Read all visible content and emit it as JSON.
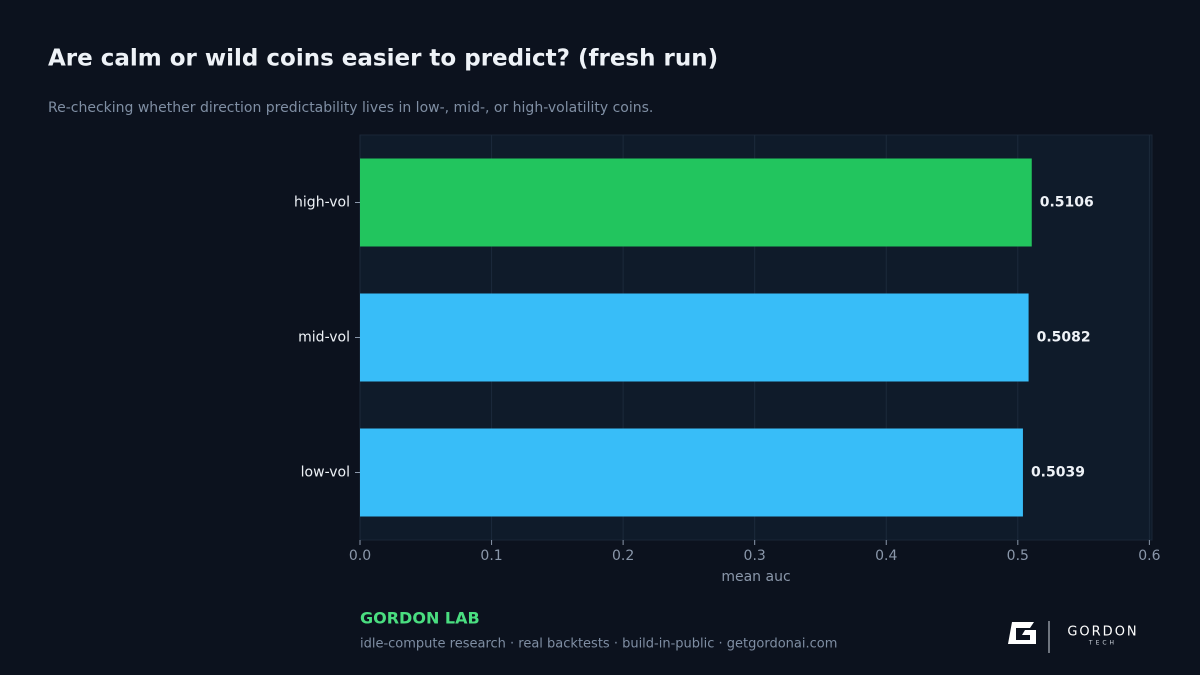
{
  "chart_data": {
    "type": "barh",
    "title": "Are calm or wild coins easier to predict? (fresh run)",
    "subtitle": "Re-checking whether direction predictability lives in low-, mid-, or high-volatility coins.",
    "categories": [
      "high-vol",
      "mid-vol",
      "low-vol"
    ],
    "values": [
      0.5106,
      0.5082,
      0.5039
    ],
    "colors": [
      "#22c55e",
      "#38bdf8",
      "#38bdf8"
    ],
    "xlabel": "mean auc",
    "xlim": [
      0,
      0.602
    ],
    "xticks": [
      {
        "value": 0,
        "label": "0.0"
      },
      0.1,
      0.2,
      0.3,
      0.4,
      0.5,
      0.6
    ],
    "grid": true
  },
  "footer": {
    "brand": "GORDON LAB",
    "tagline": "idle-compute research · real backtests · build-in-public · getgordonai.com",
    "logo_name": "GORDON",
    "logo_sub": "TECH"
  }
}
